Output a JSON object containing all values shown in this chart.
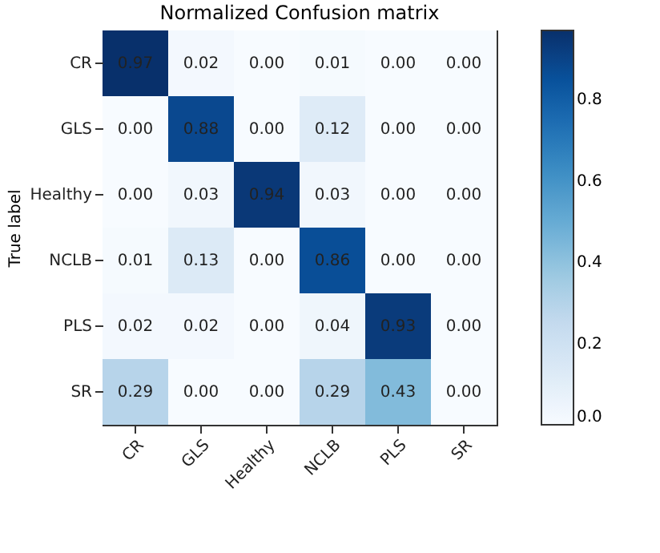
{
  "chart_data": {
    "type": "heatmap",
    "title": "Normalized Confusion matrix",
    "ylabel": "True label",
    "categories": [
      "CR",
      "GLS",
      "Healthy",
      "NCLB",
      "PLS",
      "SR"
    ],
    "y_categories": [
      "CR",
      "GLS",
      "Healthy",
      "NCLB",
      "PLS",
      "SR"
    ],
    "cells": [
      [
        0.97,
        0.02,
        0.0,
        0.01,
        0.0,
        0.0
      ],
      [
        0.0,
        0.88,
        0.0,
        0.12,
        0.0,
        0.0
      ],
      [
        0.0,
        0.03,
        0.94,
        0.03,
        0.0,
        0.0
      ],
      [
        0.01,
        0.13,
        0.0,
        0.86,
        0.0,
        0.0
      ],
      [
        0.02,
        0.02,
        0.0,
        0.04,
        0.93,
        0.0
      ],
      [
        0.29,
        0.0,
        0.0,
        0.29,
        0.43,
        0.0
      ]
    ],
    "cell_labels": [
      [
        "0.97",
        "0.02",
        "0.00",
        "0.01",
        "0.00",
        "0.00"
      ],
      [
        "0.00",
        "0.88",
        "0.00",
        "0.12",
        "0.00",
        "0.00"
      ],
      [
        "0.00",
        "0.03",
        "0.94",
        "0.03",
        "0.00",
        "0.00"
      ],
      [
        "0.01",
        "0.13",
        "0.00",
        "0.86",
        "0.00",
        "0.00"
      ],
      [
        "0.02",
        "0.02",
        "0.00",
        "0.04",
        "0.93",
        "0.00"
      ],
      [
        "0.29",
        "0.00",
        "0.00",
        "0.29",
        "0.43",
        "0.00"
      ]
    ],
    "clim": [
      0,
      0.97
    ],
    "cticks": [
      {
        "value": 0,
        "label": "0.0"
      },
      {
        "value": 0.2,
        "label": "0.2"
      },
      {
        "value": 0.4,
        "label": "0.4"
      },
      {
        "value": 0.6,
        "label": "0.6"
      },
      {
        "value": 0.8,
        "label": "0.8"
      }
    ]
  }
}
